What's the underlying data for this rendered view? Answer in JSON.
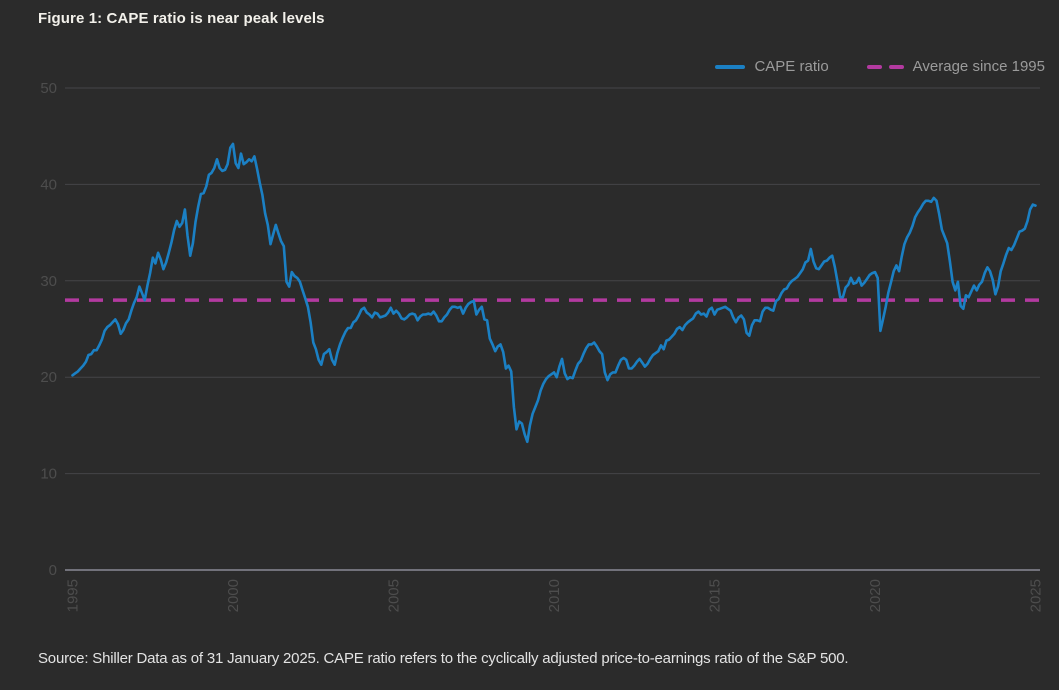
{
  "page": {
    "title": "Figure 1: CAPE ratio is near peak levels",
    "source_note": "Source: Shiller Data as of 31 January 2025. CAPE ratio refers to the cyclically adjusted price-to-earnings ratio of the S&P 500."
  },
  "legend": {
    "items": [
      {
        "label": "CAPE ratio",
        "color": "#1b80c4",
        "style": "solid"
      },
      {
        "label": "Average since 1995",
        "color": "#b33aa0",
        "style": "dashed"
      }
    ]
  },
  "colors": {
    "background": "#2b2b2b",
    "title_text": "#f2f0ea",
    "legend_text": "#9b9b9b",
    "tick_label": "#4d4d4d",
    "gridline": "#454548",
    "zero_axis": "#72727b",
    "cape_line": "#1b80c4",
    "average_line": "#b33aa0",
    "source_text": "#e3e3e3"
  },
  "chart_data": {
    "type": "line",
    "title": "Figure 1: CAPE ratio is near peak levels",
    "xlabel": "",
    "ylabel": "",
    "xlim": [
      1994.8,
      2025.3
    ],
    "ylim": [
      0,
      50
    ],
    "x_ticks": [
      1995,
      2000,
      2005,
      2010,
      2015,
      2020,
      2025
    ],
    "y_ticks": [
      0,
      10,
      20,
      30,
      40,
      50
    ],
    "grid": "horizontal",
    "legend_position": "top-right",
    "x_tick_rotation": -90,
    "series": [
      {
        "name": "CAPE ratio",
        "type": "line",
        "color": "#1b80c4",
        "start_year": 1995,
        "interval_months": 1,
        "end_label": "Jan 2025",
        "values": [
          20.2,
          20.4,
          20.6,
          20.9,
          21.2,
          21.6,
          22.3,
          22.4,
          22.8,
          22.8,
          23.3,
          23.9,
          24.8,
          25.2,
          25.4,
          25.7,
          26.0,
          25.5,
          24.5,
          24.9,
          25.6,
          26.0,
          26.9,
          27.7,
          28.3,
          29.4,
          28.7,
          28.0,
          29.5,
          30.8,
          32.4,
          31.8,
          32.9,
          32.2,
          31.2,
          31.9,
          32.9,
          34.0,
          35.3,
          36.2,
          35.6,
          36.0,
          37.4,
          34.7,
          32.6,
          33.9,
          36.1,
          37.7,
          39.0,
          39.1,
          39.8,
          41.0,
          41.2,
          41.7,
          42.6,
          41.7,
          41.4,
          41.5,
          42.1,
          43.8,
          44.2,
          42.2,
          41.7,
          43.2,
          42.1,
          42.3,
          42.6,
          42.4,
          42.9,
          41.6,
          40.2,
          38.9,
          37.0,
          35.8,
          33.8,
          34.8,
          35.8,
          34.9,
          34.1,
          33.6,
          29.9,
          29.4,
          30.9,
          30.5,
          30.3,
          29.9,
          29.0,
          28.2,
          27.3,
          25.7,
          23.6,
          22.9,
          21.8,
          21.3,
          22.4,
          22.6,
          22.9,
          21.8,
          21.3,
          22.5,
          23.4,
          24.1,
          24.7,
          25.1,
          25.1,
          25.7,
          25.9,
          26.4,
          27.0,
          27.2,
          26.7,
          26.5,
          26.2,
          26.7,
          26.6,
          26.2,
          26.3,
          26.4,
          26.7,
          27.2,
          26.6,
          26.9,
          26.6,
          26.1,
          26.0,
          26.2,
          26.5,
          26.6,
          26.5,
          25.9,
          26.3,
          26.5,
          26.5,
          26.6,
          26.5,
          26.8,
          26.4,
          25.8,
          25.8,
          26.2,
          26.5,
          27.0,
          27.3,
          27.3,
          27.2,
          27.3,
          26.6,
          27.2,
          27.6,
          27.8,
          27.9,
          26.5,
          27.0,
          27.3,
          26.0,
          25.9,
          24.0,
          23.4,
          22.7,
          23.2,
          23.4,
          22.6,
          20.9,
          21.2,
          20.6,
          16.9,
          14.6,
          15.4,
          15.2,
          14.1,
          13.3,
          15.0,
          16.2,
          16.9,
          17.6,
          18.6,
          19.3,
          19.8,
          20.1,
          20.3,
          20.5,
          20.0,
          21.1,
          21.9,
          20.4,
          19.8,
          20.0,
          19.9,
          20.7,
          21.4,
          21.7,
          22.4,
          23.0,
          23.4,
          23.4,
          23.6,
          23.2,
          22.7,
          22.4,
          20.5,
          19.7,
          20.3,
          20.5,
          20.5,
          21.2,
          21.8,
          22.0,
          21.8,
          20.9,
          20.9,
          21.2,
          21.6,
          21.9,
          21.5,
          21.1,
          21.4,
          21.9,
          22.3,
          22.5,
          22.7,
          23.3,
          22.9,
          23.8,
          23.9,
          24.2,
          24.5,
          25.0,
          25.2,
          24.9,
          25.4,
          25.7,
          25.9,
          26.1,
          26.6,
          26.8,
          26.5,
          26.6,
          26.3,
          27.0,
          27.2,
          26.5,
          27.0,
          27.1,
          27.2,
          27.3,
          27.1,
          26.9,
          26.2,
          25.7,
          26.2,
          26.4,
          26.0,
          24.6,
          24.3,
          25.4,
          25.9,
          25.9,
          25.8,
          26.8,
          27.2,
          27.2,
          27.0,
          26.9,
          27.9,
          28.1,
          28.7,
          29.1,
          29.2,
          29.7,
          30.0,
          30.2,
          30.4,
          30.8,
          31.2,
          31.9,
          32.1,
          33.3,
          32.0,
          31.3,
          31.2,
          31.6,
          32.0,
          32.1,
          32.4,
          32.6,
          31.4,
          29.9,
          28.3,
          28.3,
          29.3,
          29.6,
          30.3,
          29.7,
          29.8,
          30.3,
          29.5,
          29.8,
          30.2,
          30.6,
          30.8,
          30.9,
          30.3,
          24.8,
          26.0,
          27.3,
          28.8,
          29.9,
          31.0,
          31.6,
          31.0,
          32.5,
          33.8,
          34.5,
          35.0,
          35.7,
          36.6,
          37.1,
          37.5,
          38.0,
          38.3,
          38.3,
          38.2,
          38.6,
          38.3,
          36.9,
          35.3,
          34.6,
          33.9,
          32.0,
          29.9,
          29.0,
          29.9,
          27.4,
          27.1,
          28.5,
          28.3,
          28.9,
          29.5,
          29.0,
          29.6,
          29.9,
          30.8,
          31.4,
          31.0,
          30.1,
          28.6,
          29.4,
          31.0,
          31.8,
          32.7,
          33.4,
          33.2,
          33.7,
          34.4,
          35.1,
          35.2,
          35.4,
          36.2,
          37.4,
          37.9,
          37.8
        ]
      },
      {
        "name": "Average since 1995",
        "type": "hline",
        "color": "#b33aa0",
        "dash": true,
        "value": 28
      }
    ]
  }
}
